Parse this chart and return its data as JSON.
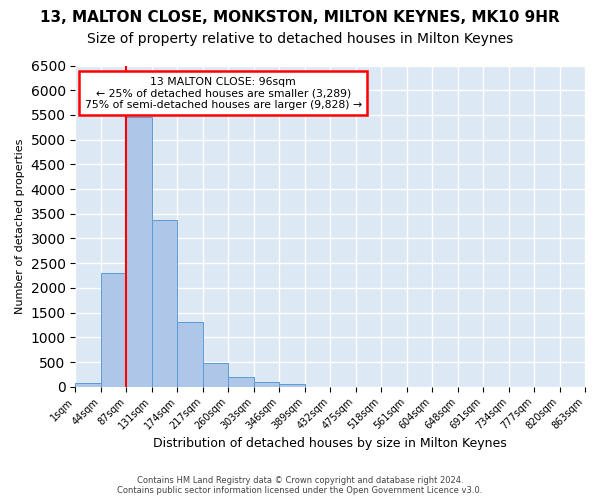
{
  "title": "13, MALTON CLOSE, MONKSTON, MILTON KEYNES, MK10 9HR",
  "subtitle": "Size of property relative to detached houses in Milton Keynes",
  "xlabel": "Distribution of detached houses by size in Milton Keynes",
  "ylabel": "Number of detached properties",
  "footer_line1": "Contains HM Land Registry data © Crown copyright and database right 2024.",
  "footer_line2": "Contains public sector information licensed under the Open Government Licence v3.0.",
  "bin_labels": [
    "1sqm",
    "44sqm",
    "87sqm",
    "131sqm",
    "174sqm",
    "217sqm",
    "260sqm",
    "303sqm",
    "346sqm",
    "389sqm",
    "432sqm",
    "475sqm",
    "518sqm",
    "561sqm",
    "604sqm",
    "648sqm",
    "691sqm",
    "734sqm",
    "777sqm",
    "820sqm",
    "863sqm"
  ],
  "bar_values": [
    75,
    2300,
    5450,
    3380,
    1310,
    490,
    200,
    90,
    55,
    0,
    0,
    0,
    0,
    0,
    0,
    0,
    0,
    0,
    0,
    0
  ],
  "bar_color": "#aec6e8",
  "bar_edge_color": "#5b9bd5",
  "vline_x": 2,
  "annotation_text_line1": "13 MALTON CLOSE: 96sqm",
  "annotation_text_line2": "← 25% of detached houses are smaller (3,289)",
  "annotation_text_line3": "75% of semi-detached houses are larger (9,828) →",
  "annotation_box_color": "white",
  "annotation_box_edgecolor": "red",
  "vline_color": "red",
  "ylim": [
    0,
    6500
  ],
  "background_color": "#dde8f5",
  "grid_color": "white",
  "title_fontsize": 11,
  "subtitle_fontsize": 10
}
